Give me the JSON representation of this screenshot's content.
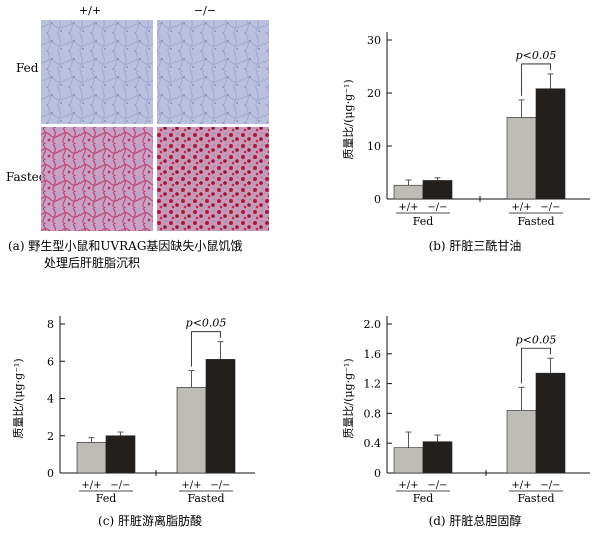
{
  "panel_a": {
    "col_labels": [
      "+/+",
      "−/−"
    ],
    "row_labels": [
      "Fed",
      "Fasted"
    ],
    "caption_line1": "(a) 野生型小鼠和UVRAG基因缺失小鼠饥饿",
    "caption_line2": "处理后肝脏脂沉积"
  },
  "colors": {
    "wildtype": "#bebcb6",
    "knockout": "#231f1c",
    "fed_tissue": "#b7bfdc",
    "fasted_tissue": "#b86a8e"
  },
  "chart_data": [
    {
      "panel": "b",
      "type": "bar",
      "caption": "(b) 肝脏三酰甘油",
      "ylabel": "质量比/(μg·g⁻¹)",
      "ylim": [
        0,
        30
      ],
      "yticks": [
        "0",
        "10",
        "20",
        "30"
      ],
      "ytick_values": [
        0,
        10,
        20,
        30
      ],
      "groups": [
        "Fed",
        "Fasted"
      ],
      "genotype_labels": [
        "+/+",
        "−/−"
      ],
      "series": [
        {
          "name": "+/+",
          "values": [
            2.6,
            15.4
          ],
          "errors": [
            1.0,
            3.3
          ]
        },
        {
          "name": "−/−",
          "values": [
            3.5,
            20.8
          ],
          "errors": [
            0.5,
            2.8
          ]
        }
      ],
      "annotation": "p<0.05"
    },
    {
      "panel": "c",
      "type": "bar",
      "caption": "(c) 肝脏游离脂肪酸",
      "ylabel": "质量比/(μg·g⁻¹)",
      "ylim": [
        0,
        8
      ],
      "yticks": [
        "0",
        "2",
        "4",
        "6",
        "8"
      ],
      "ytick_values": [
        0,
        2,
        4,
        6,
        8
      ],
      "groups": [
        "Fed",
        "Fasted"
      ],
      "genotype_labels": [
        "+/+",
        "−/−"
      ],
      "series": [
        {
          "name": "+/+",
          "values": [
            1.65,
            4.6
          ],
          "errors": [
            0.25,
            0.9
          ]
        },
        {
          "name": "−/−",
          "values": [
            2.0,
            6.1
          ],
          "errors": [
            0.2,
            0.95
          ]
        }
      ],
      "annotation": "p<0.05"
    },
    {
      "panel": "d",
      "type": "bar",
      "caption": "(d) 肝脏总胆固醇",
      "ylabel": "质量比/(μg·g⁻¹)",
      "ylim": [
        0,
        2.0
      ],
      "yticks": [
        "0",
        "0.4",
        "0.8",
        "1.2",
        "1.6",
        "2.0"
      ],
      "ytick_values": [
        0,
        0.4,
        0.8,
        1.2,
        1.6,
        2.0
      ],
      "groups": [
        "Fed",
        "Fasted"
      ],
      "genotype_labels": [
        "+/+",
        "−/−"
      ],
      "series": [
        {
          "name": "+/+",
          "values": [
            0.34,
            0.84
          ],
          "errors": [
            0.21,
            0.31
          ]
        },
        {
          "name": "−/−",
          "values": [
            0.42,
            1.34
          ],
          "errors": [
            0.09,
            0.2
          ]
        }
      ],
      "annotation": "p<0.05"
    }
  ]
}
